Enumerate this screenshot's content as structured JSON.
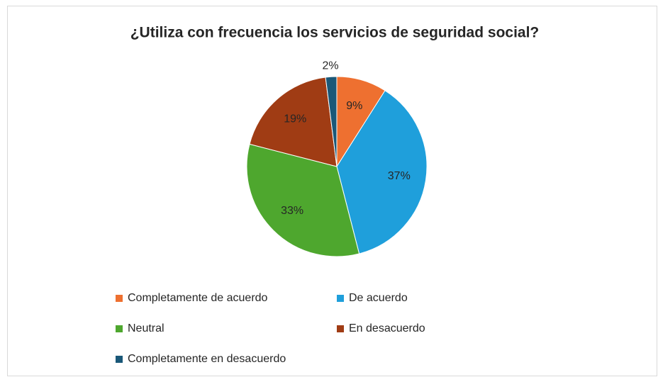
{
  "chart_data": {
    "type": "pie",
    "title": "¿Utiliza con frecuencia los servicios de seguridad social?",
    "categories": [
      "Completamente de acuerdo",
      "De acuerdo",
      "Neutral",
      "En desacuerdo",
      "Completamente en desacuerdo"
    ],
    "values": [
      9,
      37,
      33,
      19,
      2
    ],
    "value_labels": [
      "9%",
      "37%",
      "33%",
      "19%",
      "2%"
    ],
    "colors": [
      "#ee7030",
      "#1f9fdb",
      "#4ea72e",
      "#a03c14",
      "#1a5878"
    ],
    "legend": "bottom"
  }
}
